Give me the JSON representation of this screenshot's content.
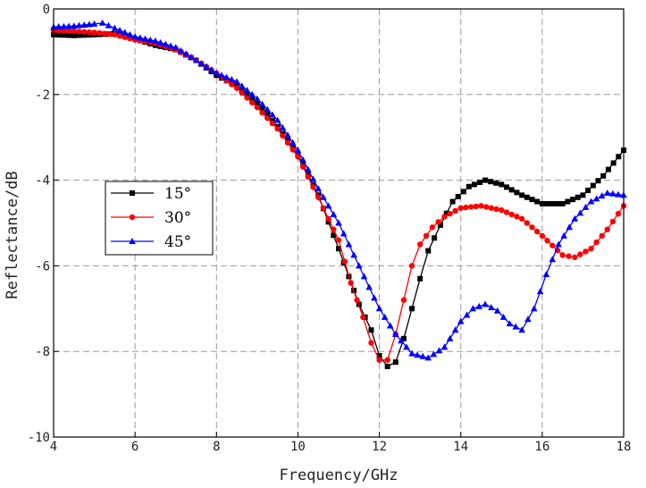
{
  "chart_data": {
    "type": "line",
    "title": "",
    "xlabel": "Frequency/GHz",
    "ylabel": "Reflectance/dB",
    "xlim": [
      4,
      18
    ],
    "ylim": [
      -10,
      0
    ],
    "xticks": [
      4,
      6,
      8,
      10,
      12,
      14,
      16,
      18
    ],
    "yticks": [
      0,
      -2,
      -4,
      -6,
      -8,
      -10
    ],
    "grid": true,
    "legend_position": "middle-left",
    "series": [
      {
        "name": "15°",
        "color": "#000000",
        "marker": "square",
        "points": [
          [
            4.0,
            -0.6
          ],
          [
            4.5,
            -0.62
          ],
          [
            5.0,
            -0.6
          ],
          [
            5.5,
            -0.58
          ],
          [
            6.0,
            -0.7
          ],
          [
            6.5,
            -0.85
          ],
          [
            7.0,
            -0.95
          ],
          [
            7.5,
            -1.2
          ],
          [
            8.0,
            -1.55
          ],
          [
            8.5,
            -1.8
          ],
          [
            9.0,
            -2.2
          ],
          [
            9.5,
            -2.75
          ],
          [
            10.0,
            -3.4
          ],
          [
            10.5,
            -4.35
          ],
          [
            11.0,
            -5.6
          ],
          [
            11.5,
            -6.9
          ],
          [
            11.8,
            -7.5
          ],
          [
            12.0,
            -8.1
          ],
          [
            12.2,
            -8.35
          ],
          [
            12.4,
            -8.25
          ],
          [
            12.6,
            -7.7
          ],
          [
            12.8,
            -7.0
          ],
          [
            13.0,
            -6.3
          ],
          [
            13.2,
            -5.65
          ],
          [
            13.5,
            -5.05
          ],
          [
            13.8,
            -4.5
          ],
          [
            14.2,
            -4.15
          ],
          [
            14.6,
            -4.0
          ],
          [
            15.0,
            -4.1
          ],
          [
            15.5,
            -4.35
          ],
          [
            16.0,
            -4.55
          ],
          [
            16.5,
            -4.55
          ],
          [
            17.0,
            -4.35
          ],
          [
            17.5,
            -3.9
          ],
          [
            18.0,
            -3.3
          ]
        ]
      },
      {
        "name": "30°",
        "color": "#ff0000",
        "marker": "circle",
        "points": [
          [
            4.0,
            -0.5
          ],
          [
            4.5,
            -0.52
          ],
          [
            5.0,
            -0.55
          ],
          [
            5.5,
            -0.6
          ],
          [
            6.0,
            -0.72
          ],
          [
            6.5,
            -0.8
          ],
          [
            7.0,
            -0.95
          ],
          [
            7.5,
            -1.2
          ],
          [
            8.0,
            -1.5
          ],
          [
            8.5,
            -1.85
          ],
          [
            9.0,
            -2.3
          ],
          [
            9.5,
            -2.8
          ],
          [
            10.0,
            -3.45
          ],
          [
            10.5,
            -4.4
          ],
          [
            11.0,
            -5.4
          ],
          [
            11.3,
            -6.4
          ],
          [
            11.6,
            -7.2
          ],
          [
            11.8,
            -7.8
          ],
          [
            12.0,
            -8.2
          ],
          [
            12.2,
            -8.2
          ],
          [
            12.4,
            -7.6
          ],
          [
            12.6,
            -6.8
          ],
          [
            12.8,
            -6.0
          ],
          [
            13.0,
            -5.5
          ],
          [
            13.3,
            -5.1
          ],
          [
            13.6,
            -4.85
          ],
          [
            14.0,
            -4.65
          ],
          [
            14.5,
            -4.6
          ],
          [
            15.0,
            -4.7
          ],
          [
            15.5,
            -4.9
          ],
          [
            16.0,
            -5.3
          ],
          [
            16.5,
            -5.75
          ],
          [
            16.8,
            -5.8
          ],
          [
            17.2,
            -5.6
          ],
          [
            17.6,
            -5.15
          ],
          [
            18.0,
            -4.6
          ]
        ]
      },
      {
        "name": "45°",
        "color": "#0000ff",
        "marker": "triangle",
        "points": [
          [
            4.0,
            -0.42
          ],
          [
            4.5,
            -0.4
          ],
          [
            5.0,
            -0.35
          ],
          [
            5.2,
            -0.33
          ],
          [
            5.5,
            -0.45
          ],
          [
            6.0,
            -0.65
          ],
          [
            6.5,
            -0.75
          ],
          [
            7.0,
            -0.9
          ],
          [
            7.5,
            -1.2
          ],
          [
            8.0,
            -1.5
          ],
          [
            8.5,
            -1.7
          ],
          [
            9.0,
            -2.1
          ],
          [
            9.5,
            -2.6
          ],
          [
            10.0,
            -3.3
          ],
          [
            10.5,
            -4.2
          ],
          [
            11.0,
            -5.0
          ],
          [
            11.5,
            -6.0
          ],
          [
            12.0,
            -7.0
          ],
          [
            12.4,
            -7.6
          ],
          [
            12.8,
            -8.05
          ],
          [
            13.2,
            -8.15
          ],
          [
            13.6,
            -7.9
          ],
          [
            14.0,
            -7.3
          ],
          [
            14.3,
            -7.0
          ],
          [
            14.6,
            -6.9
          ],
          [
            14.9,
            -7.05
          ],
          [
            15.2,
            -7.35
          ],
          [
            15.5,
            -7.5
          ],
          [
            15.8,
            -7.0
          ],
          [
            16.1,
            -6.2
          ],
          [
            16.4,
            -5.5
          ],
          [
            16.8,
            -4.9
          ],
          [
            17.2,
            -4.5
          ],
          [
            17.6,
            -4.3
          ],
          [
            18.0,
            -4.35
          ]
        ]
      }
    ]
  }
}
